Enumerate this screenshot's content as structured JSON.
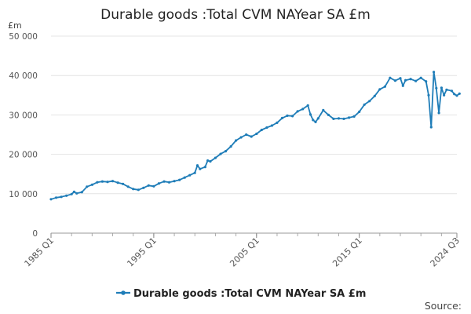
{
  "chart_data": {
    "type": "line",
    "title": "Durable goods :Total CVM NAYear SA £m",
    "unit_label": "£m",
    "ylim": [
      0,
      50000
    ],
    "y_ticks": [
      "0",
      "10 000",
      "20 000",
      "30 000",
      "40 000",
      "50 000"
    ],
    "y_tick_values": [
      0,
      10000,
      20000,
      30000,
      40000,
      50000
    ],
    "x_range": [
      1985.0,
      2024.5
    ],
    "x_ticks": [
      {
        "label": "1985 Q1",
        "x": 1985.0
      },
      {
        "label": "1995 Q1",
        "x": 1995.0
      },
      {
        "label": "2005 Q1",
        "x": 2005.0
      },
      {
        "label": "2015 Q1",
        "x": 2015.0
      },
      {
        "label": "2024 Q3",
        "x": 2024.5
      }
    ],
    "grid": true,
    "legend_position": "bottom",
    "series": [
      {
        "name": "Durable goods :Total CVM NAYear SA £m",
        "color": "#1f7db8",
        "points": [
          [
            1985.0,
            8600
          ],
          [
            1985.5,
            9000
          ],
          [
            1986.0,
            9200
          ],
          [
            1986.5,
            9500
          ],
          [
            1987.0,
            9900
          ],
          [
            1987.25,
            10500
          ],
          [
            1987.5,
            10100
          ],
          [
            1988.0,
            10400
          ],
          [
            1988.5,
            11800
          ],
          [
            1989.0,
            12300
          ],
          [
            1989.5,
            12900
          ],
          [
            1990.0,
            13100
          ],
          [
            1990.5,
            13000
          ],
          [
            1991.0,
            13200
          ],
          [
            1991.5,
            12800
          ],
          [
            1992.0,
            12500
          ],
          [
            1992.5,
            11800
          ],
          [
            1993.0,
            11200
          ],
          [
            1993.5,
            11000
          ],
          [
            1994.0,
            11500
          ],
          [
            1994.5,
            12100
          ],
          [
            1995.0,
            11900
          ],
          [
            1995.5,
            12600
          ],
          [
            1996.0,
            13100
          ],
          [
            1996.5,
            12900
          ],
          [
            1997.0,
            13200
          ],
          [
            1997.5,
            13500
          ],
          [
            1998.0,
            14100
          ],
          [
            1998.5,
            14700
          ],
          [
            1999.0,
            15300
          ],
          [
            1999.25,
            17200
          ],
          [
            1999.5,
            16300
          ],
          [
            2000.0,
            16800
          ],
          [
            2000.25,
            18400
          ],
          [
            2000.5,
            18200
          ],
          [
            2001.0,
            19100
          ],
          [
            2001.5,
            20100
          ],
          [
            2002.0,
            20800
          ],
          [
            2002.5,
            22000
          ],
          [
            2003.0,
            23500
          ],
          [
            2003.5,
            24300
          ],
          [
            2004.0,
            25000
          ],
          [
            2004.5,
            24500
          ],
          [
            2005.0,
            25200
          ],
          [
            2005.5,
            26200
          ],
          [
            2006.0,
            26800
          ],
          [
            2006.5,
            27300
          ],
          [
            2007.0,
            28000
          ],
          [
            2007.5,
            29200
          ],
          [
            2008.0,
            29800
          ],
          [
            2008.5,
            29700
          ],
          [
            2009.0,
            30900
          ],
          [
            2009.5,
            31500
          ],
          [
            2010.0,
            32400
          ],
          [
            2010.25,
            30100
          ],
          [
            2010.5,
            28700
          ],
          [
            2010.75,
            28200
          ],
          [
            2011.0,
            29100
          ],
          [
            2011.5,
            31200
          ],
          [
            2012.0,
            30000
          ],
          [
            2012.5,
            29000
          ],
          [
            2013.0,
            29100
          ],
          [
            2013.5,
            29000
          ],
          [
            2014.0,
            29300
          ],
          [
            2014.5,
            29600
          ],
          [
            2015.0,
            30800
          ],
          [
            2015.5,
            32600
          ],
          [
            2016.0,
            33500
          ],
          [
            2016.5,
            34800
          ],
          [
            2017.0,
            36500
          ],
          [
            2017.5,
            37200
          ],
          [
            2018.0,
            39400
          ],
          [
            2018.5,
            38700
          ],
          [
            2019.0,
            39300
          ],
          [
            2019.25,
            37400
          ],
          [
            2019.5,
            38800
          ],
          [
            2020.0,
            39100
          ],
          [
            2020.5,
            38600
          ],
          [
            2021.0,
            39400
          ],
          [
            2021.5,
            38500
          ],
          [
            2021.75,
            35000
          ],
          [
            2022.0,
            26900
          ],
          [
            2022.25,
            40900
          ],
          [
            2022.5,
            36800
          ],
          [
            2022.75,
            30500
          ],
          [
            2023.0,
            36900
          ],
          [
            2023.25,
            35000
          ],
          [
            2023.5,
            36400
          ],
          [
            2024.0,
            36100
          ],
          [
            2024.25,
            35300
          ],
          [
            2024.5,
            34900
          ],
          [
            2024.75,
            35400
          ]
        ]
      }
    ],
    "source_text": "Source:"
  }
}
